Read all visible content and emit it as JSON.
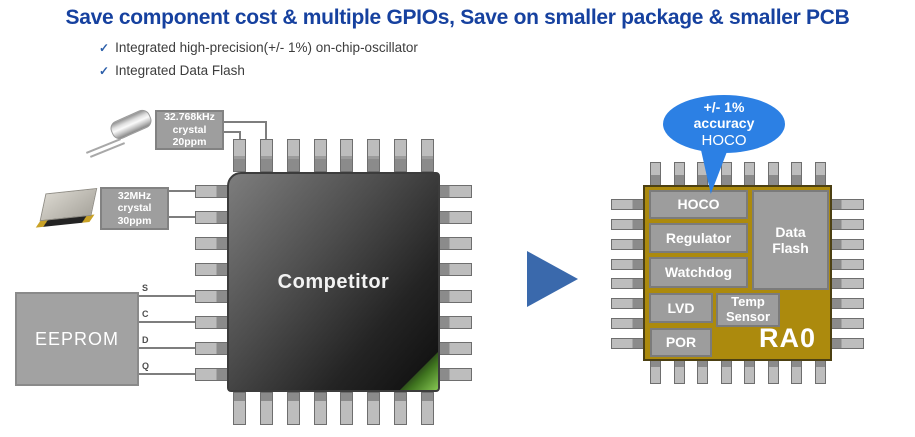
{
  "title": "Save component cost & multiple GPIOs, Save on smaller package & smaller PCB",
  "bullets": [
    {
      "check": "✓",
      "text": "Integrated high-precision(+/- 1%) on-chip-oscillator"
    },
    {
      "check": "✓",
      "text": "Integrated Data Flash"
    }
  ],
  "competitor": {
    "label": "Competitor",
    "crystal1": {
      "line1": "32.768kHz",
      "line2": "crystal",
      "line3": "20ppm"
    },
    "crystal2": {
      "line1": "32MHz",
      "line2": "crystal",
      "line3": "30ppm"
    },
    "eeprom": {
      "label": "EEPROM",
      "pins": [
        "S",
        "C",
        "D",
        "Q"
      ]
    }
  },
  "ra0": {
    "label": "RA0",
    "blocks": {
      "hoco": "HOCO",
      "regulator": "Regulator",
      "watchdog": "Watchdog",
      "data_flash": "Data Flash",
      "lvd": "LVD",
      "temp_sensor": "Temp Sensor",
      "por": "POR"
    },
    "bubble": {
      "line1": "+/- 1%",
      "line2": "accuracy",
      "line3": "HOCO"
    }
  },
  "colors": {
    "title_blue": "#16419F",
    "bubble_blue": "#2C80E4",
    "arrow_blue": "#3A69AC",
    "ra0_gold": "#AC8A0D",
    "block_gray": "#9D9D9D",
    "chip_dark_gradient": [
      "#7D7D7D",
      "#0D0D0D"
    ],
    "corner_green": "#86C653"
  }
}
